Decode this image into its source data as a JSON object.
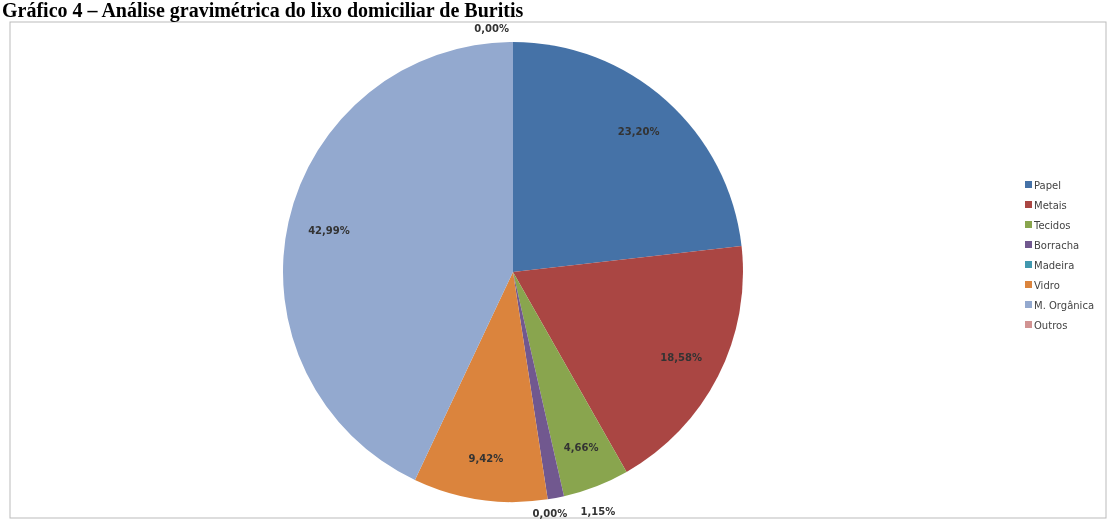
{
  "chart_data": {
    "type": "pie",
    "title": "Gráfico 4 – Análise gravimétrica do lixo domiciliar de Buritis",
    "categories": [
      "Papel",
      "Metais",
      "Tecidos",
      "Borracha",
      "Madeira",
      "Vidro",
      "M. Orgânica",
      "Outros"
    ],
    "values": [
      23.2,
      18.58,
      4.66,
      1.15,
      0.0,
      9.42,
      42.99,
      0.0
    ],
    "colors": [
      "#4572a7",
      "#aa4643",
      "#89a54e",
      "#71588f",
      "#4198af",
      "#db843d",
      "#93a9cf",
      "#d19392"
    ],
    "value_labels": [
      "23,20%",
      "18,58%",
      "4,66%",
      "1,15%",
      "0,00%",
      "9,42%",
      "42,99%",
      "0,00%"
    ],
    "legend": "right"
  }
}
